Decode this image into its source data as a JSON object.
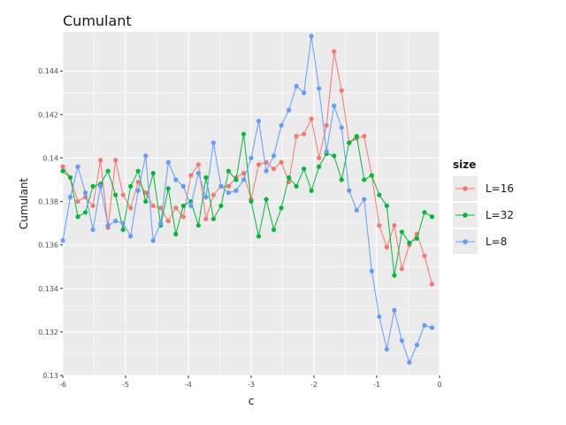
{
  "chart_data": {
    "type": "line",
    "title": "Cumulant",
    "xlabel": "c",
    "ylabel": "Cumulant",
    "xlim": [
      -6,
      0
    ],
    "ylim": [
      0.13,
      0.1458
    ],
    "x_ticks": [
      -6,
      -5,
      -4,
      -3,
      -2,
      -1,
      0
    ],
    "x_tick_labels": [
      "-6",
      "-5",
      "-4",
      "-3",
      "-2",
      "-1",
      "0"
    ],
    "y_ticks": [
      0.13,
      0.132,
      0.134,
      0.136,
      0.138,
      0.14,
      0.142,
      0.144
    ],
    "y_tick_labels": [
      "0.13",
      "0.132",
      "0.134",
      "0.136",
      "0.138",
      "0.14",
      "0.142",
      "0.144"
    ],
    "grid": true,
    "legend": {
      "title": "size",
      "placement": "right"
    },
    "x": [
      -6.0,
      -5.88,
      -5.76,
      -5.64,
      -5.52,
      -5.4,
      -5.28,
      -5.16,
      -5.04,
      -4.92,
      -4.8,
      -4.68,
      -4.56,
      -4.44,
      -4.32,
      -4.2,
      -4.08,
      -3.96,
      -3.84,
      -3.72,
      -3.6,
      -3.48,
      -3.36,
      -3.24,
      -3.12,
      -3.0,
      -2.88,
      -2.76,
      -2.64,
      -2.52,
      -2.4,
      -2.28,
      -2.16,
      -2.04,
      -1.92,
      -1.8,
      -1.68,
      -1.56,
      -1.44,
      -1.32,
      -1.2,
      -1.08,
      -0.96,
      -0.84,
      -0.72,
      -0.6,
      -0.48,
      -0.36,
      -0.24,
      -0.12
    ],
    "series": [
      {
        "name": "L=16",
        "color": "#F8766D",
        "values": [
          0.1396,
          0.1391,
          0.138,
          0.1382,
          0.1378,
          0.1399,
          0.1368,
          0.1399,
          0.1383,
          0.1377,
          0.1389,
          0.1384,
          0.1378,
          0.1377,
          0.1371,
          0.1377,
          0.1373,
          0.1392,
          0.1397,
          0.1372,
          0.1383,
          0.1387,
          0.1387,
          0.1391,
          0.1393,
          0.1381,
          0.1397,
          0.1398,
          0.1395,
          0.1398,
          0.1389,
          0.141,
          0.1411,
          0.1418,
          0.14,
          0.1415,
          0.1449,
          0.1431,
          0.1407,
          0.1409,
          0.141,
          0.1392,
          0.1369,
          0.1359,
          0.1369,
          0.1349,
          0.136,
          0.1365,
          0.1355,
          0.1342
        ]
      },
      {
        "name": "L=32",
        "color": "#00BA38",
        "values": [
          0.1394,
          0.1391,
          0.1373,
          0.1375,
          0.1387,
          0.1388,
          0.1394,
          0.1383,
          0.1367,
          0.1387,
          0.1394,
          0.138,
          0.1393,
          0.1369,
          0.1386,
          0.1365,
          0.1378,
          0.138,
          0.1369,
          0.1391,
          0.1372,
          0.1378,
          0.1394,
          0.139,
          0.1411,
          0.138,
          0.1364,
          0.1381,
          0.1367,
          0.1377,
          0.1391,
          0.1387,
          0.1395,
          0.1385,
          0.1396,
          0.1402,
          0.1401,
          0.139,
          0.1407,
          0.141,
          0.139,
          0.1392,
          0.1383,
          0.1378,
          0.1346,
          0.1366,
          0.1361,
          0.1363,
          0.1375,
          0.1373
        ]
      },
      {
        "name": "L=8",
        "color": "#619CFF",
        "values": [
          0.1362,
          0.1382,
          0.1396,
          0.1384,
          0.1367,
          0.1387,
          0.1369,
          0.1371,
          0.137,
          0.1364,
          0.1385,
          0.1401,
          0.1362,
          0.137,
          0.1398,
          0.139,
          0.1387,
          0.1378,
          0.1393,
          0.1382,
          0.1407,
          0.1387,
          0.1384,
          0.1385,
          0.139,
          0.14,
          0.1417,
          0.1394,
          0.1401,
          0.1415,
          0.1422,
          0.1433,
          0.143,
          0.1456,
          0.1432,
          0.1403,
          0.1424,
          0.1414,
          0.1385,
          0.1376,
          0.1381,
          0.1348,
          0.1327,
          0.1312,
          0.133,
          0.1316,
          0.1306,
          0.1314,
          0.1323,
          0.1322
        ]
      }
    ]
  }
}
